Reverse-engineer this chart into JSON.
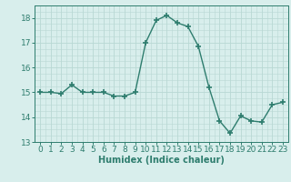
{
  "x": [
    0,
    1,
    2,
    3,
    4,
    5,
    6,
    7,
    8,
    9,
    10,
    11,
    12,
    13,
    14,
    15,
    16,
    17,
    18,
    19,
    20,
    21,
    22,
    23
  ],
  "y": [
    15.0,
    15.0,
    14.95,
    15.3,
    15.0,
    15.0,
    15.0,
    14.85,
    14.85,
    15.0,
    17.0,
    17.9,
    18.1,
    17.8,
    17.65,
    16.85,
    15.2,
    13.85,
    13.35,
    14.05,
    13.85,
    13.8,
    14.5,
    14.6
  ],
  "line_color": "#2e7d6e",
  "marker": "+",
  "marker_size": 4,
  "marker_lw": 1.2,
  "line_width": 1.0,
  "bg_color": "#d8eeec",
  "grid_color": "#b8d8d4",
  "xlabel": "Humidex (Indice chaleur)",
  "xlabel_fontsize": 7,
  "tick_fontsize": 6.5,
  "ylim": [
    13.0,
    18.5
  ],
  "xlim": [
    -0.5,
    23.5
  ],
  "yticks": [
    13,
    14,
    15,
    16,
    17,
    18
  ],
  "xticks": [
    0,
    1,
    2,
    3,
    4,
    5,
    6,
    7,
    8,
    9,
    10,
    11,
    12,
    13,
    14,
    15,
    16,
    17,
    18,
    19,
    20,
    21,
    22,
    23
  ]
}
